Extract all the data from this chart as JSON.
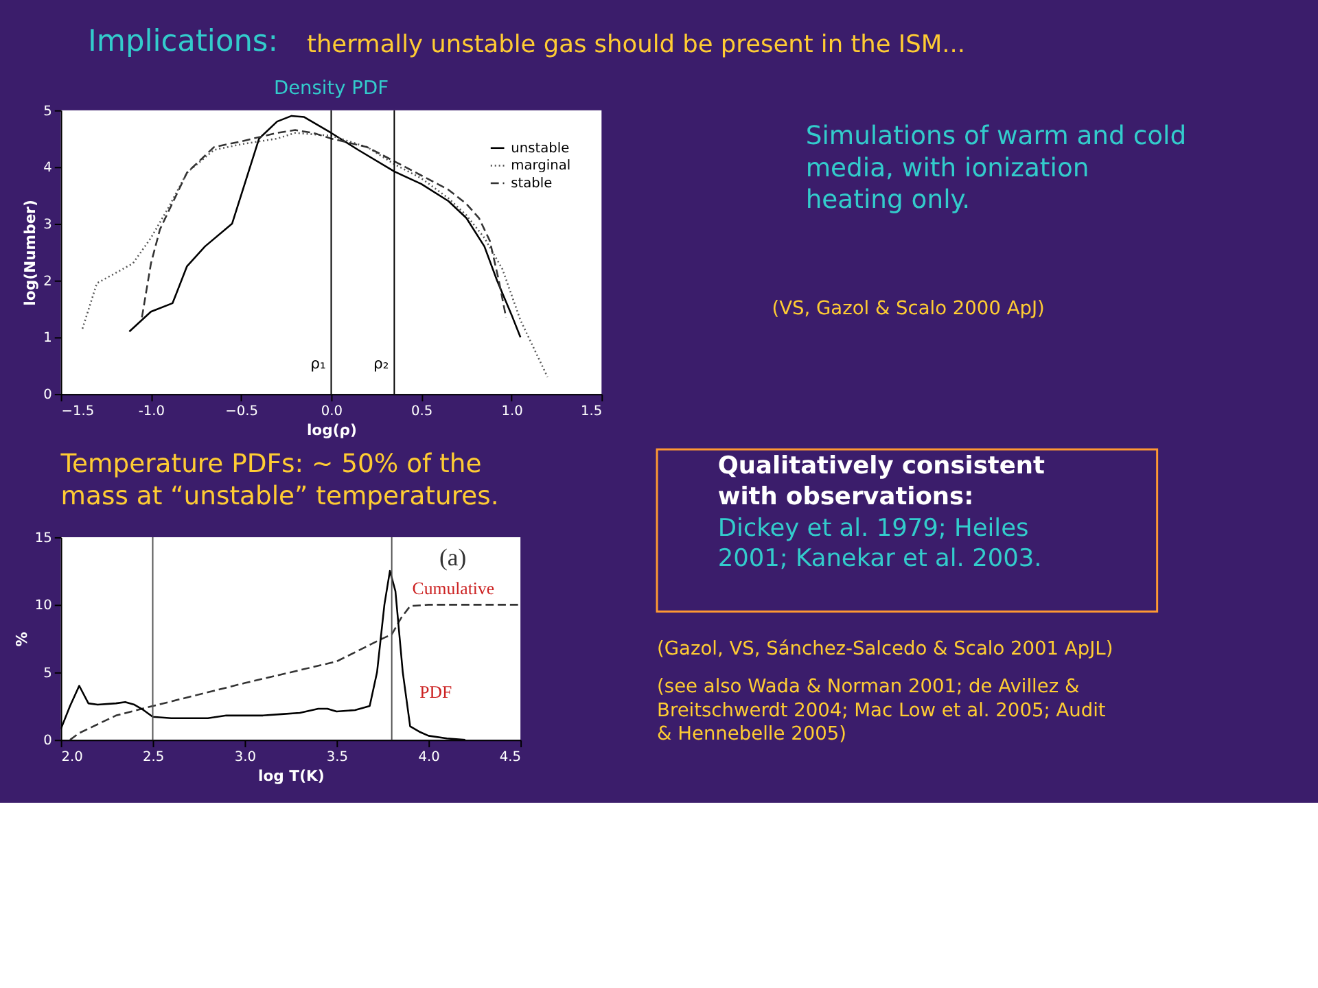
{
  "chart_data": [
    {
      "type": "line",
      "title": "Density PDF",
      "xlabel": "log(ρ)",
      "ylabel": "log(Number)",
      "xlim": [
        -1.5,
        1.5
      ],
      "ylim": [
        0,
        5
      ],
      "xticks": [
        -1.5,
        {
          "value": -1,
          "label": "-1.0"
        },
        -0.5,
        {
          "value": 0,
          "label": "0.0"
        },
        0.5,
        {
          "value": 1,
          "label": "1.0"
        },
        1.5
      ],
      "yticks": [
        0,
        1,
        2,
        3,
        4,
        5
      ],
      "grid": false,
      "legend": "top right",
      "marker": "none",
      "series": [
        {
          "name": "unstable",
          "color": "#000000",
          "line_style": "solid",
          "x": [
            -1.12,
            -1.0,
            -0.88,
            -0.8,
            -0.7,
            -0.55,
            -0.4,
            -0.3,
            -0.22,
            -0.15,
            0,
            0.15,
            0.35,
            0.5,
            0.65,
            0.75,
            0.85,
            0.92,
            1.0,
            1.05
          ],
          "values": [
            1.1,
            1.45,
            1.6,
            2.25,
            2.6,
            3.0,
            4.5,
            4.8,
            4.9,
            4.88,
            4.6,
            4.3,
            3.92,
            3.7,
            3.4,
            3.1,
            2.6,
            2.0,
            1.4,
            1.0
          ]
        },
        {
          "name": "marginal",
          "color": "#555555",
          "line_style": "dotted",
          "x": [
            -1.38,
            -1.3,
            -1.1,
            -1.0,
            -0.9,
            -0.8,
            -0.65,
            -0.5,
            -0.3,
            -0.2,
            0,
            0.2,
            0.35,
            0.5,
            0.65,
            0.75,
            0.85,
            0.95,
            1.05,
            1.2
          ],
          "values": [
            1.15,
            1.95,
            2.3,
            2.75,
            3.3,
            3.9,
            4.3,
            4.4,
            4.5,
            4.6,
            4.55,
            4.35,
            4.05,
            3.8,
            3.45,
            3.15,
            2.75,
            2.2,
            1.3,
            0.3
          ]
        },
        {
          "name": "stable",
          "color": "#333333",
          "line_style": "dashed",
          "x": [
            -1.05,
            -1.0,
            -0.95,
            -0.8,
            -0.65,
            -0.5,
            -0.3,
            -0.2,
            -0.1,
            0,
            0.2,
            0.35,
            0.5,
            0.65,
            0.75,
            0.82,
            0.88,
            0.93,
            0.97
          ],
          "values": [
            1.35,
            2.3,
            2.9,
            3.9,
            4.35,
            4.45,
            4.6,
            4.65,
            4.6,
            4.5,
            4.35,
            4.1,
            3.85,
            3.6,
            3.35,
            3.1,
            2.7,
            2.0,
            1.35
          ]
        }
      ],
      "ref_lines": [
        {
          "axis": "x",
          "value": 0,
          "label": "ρ₁",
          "color": "#000000"
        },
        {
          "axis": "x",
          "value": 0.35,
          "label": "ρ₂",
          "color": "#000000"
        }
      ],
      "annotations": [
        "Implications:",
        "thermally unstable gas should be present in the ISM...",
        "Simulations of warm and cold media, with ionization heating only.",
        "(VS, Gazol & Scalo 2000 ApJ)"
      ]
    },
    {
      "type": "line",
      "xlabel": "log T(K)",
      "ylabel": "%",
      "xlim": [
        2.0,
        4.5
      ],
      "ylim": [
        0,
        15
      ],
      "xticks": [
        {
          "value": 2,
          "label": "2.0"
        },
        2.5,
        {
          "value": 3,
          "label": "3.0"
        },
        3.5,
        {
          "value": 4,
          "label": "4.0"
        },
        4.5
      ],
      "yticks": [
        0,
        5,
        10,
        15
      ],
      "grid": false,
      "legend": false,
      "marker": "none",
      "series": [
        {
          "name": "Cumulative",
          "color": "#333333",
          "line_style": "dashed",
          "x": [
            2.05,
            2.1,
            2.3,
            2.5,
            3.0,
            3.5,
            3.75,
            3.8,
            3.85,
            3.9,
            4.0,
            4.5
          ],
          "values": [
            0,
            0.5,
            1.8,
            2.5,
            4.2,
            5.8,
            7.5,
            7.8,
            9.0,
            9.9,
            10,
            10
          ]
        },
        {
          "name": "PDF",
          "color": "#000000",
          "line_style": "solid",
          "x": [
            2.0,
            2.05,
            2.1,
            2.15,
            2.2,
            2.3,
            2.35,
            2.4,
            2.45,
            2.5,
            2.6,
            2.7,
            2.8,
            2.9,
            3.0,
            3.1,
            3.2,
            3.3,
            3.4,
            3.45,
            3.5,
            3.6,
            3.68,
            3.72,
            3.76,
            3.79,
            3.82,
            3.86,
            3.9,
            3.95,
            4.0,
            4.1,
            4.2
          ],
          "values": [
            0.8,
            2.5,
            4.0,
            2.7,
            2.6,
            2.7,
            2.8,
            2.6,
            2.2,
            1.7,
            1.6,
            1.6,
            1.6,
            1.8,
            1.8,
            1.8,
            1.9,
            2.0,
            2.3,
            2.3,
            2.1,
            2.2,
            2.5,
            5.0,
            10,
            12.5,
            11,
            5,
            1.0,
            0.6,
            0.3,
            0.1,
            0
          ]
        }
      ],
      "ref_lines": [
        {
          "axis": "x",
          "value": 2.5,
          "color": "#555555"
        },
        {
          "axis": "x",
          "value": 3.8,
          "color": "#555555"
        }
      ],
      "annotations": [
        "(a)",
        "Temperature PDFs: ~ 50% of the mass at “unstable” temperatures.",
        "Qualitatively consistent with observations:",
        "Dickey et al. 1979; Heiles 2001; Kanekar et al. 2003.",
        "(Gazol, VS, Sánchez-Salcedo & Scalo 2001 ApJL)",
        "(see also Wada & Norman 2001; de Avillez & Breitschwerdt 2004; Mac Low et al. 2005; Audit & Hennebelle 2005)"
      ]
    }
  ]
}
